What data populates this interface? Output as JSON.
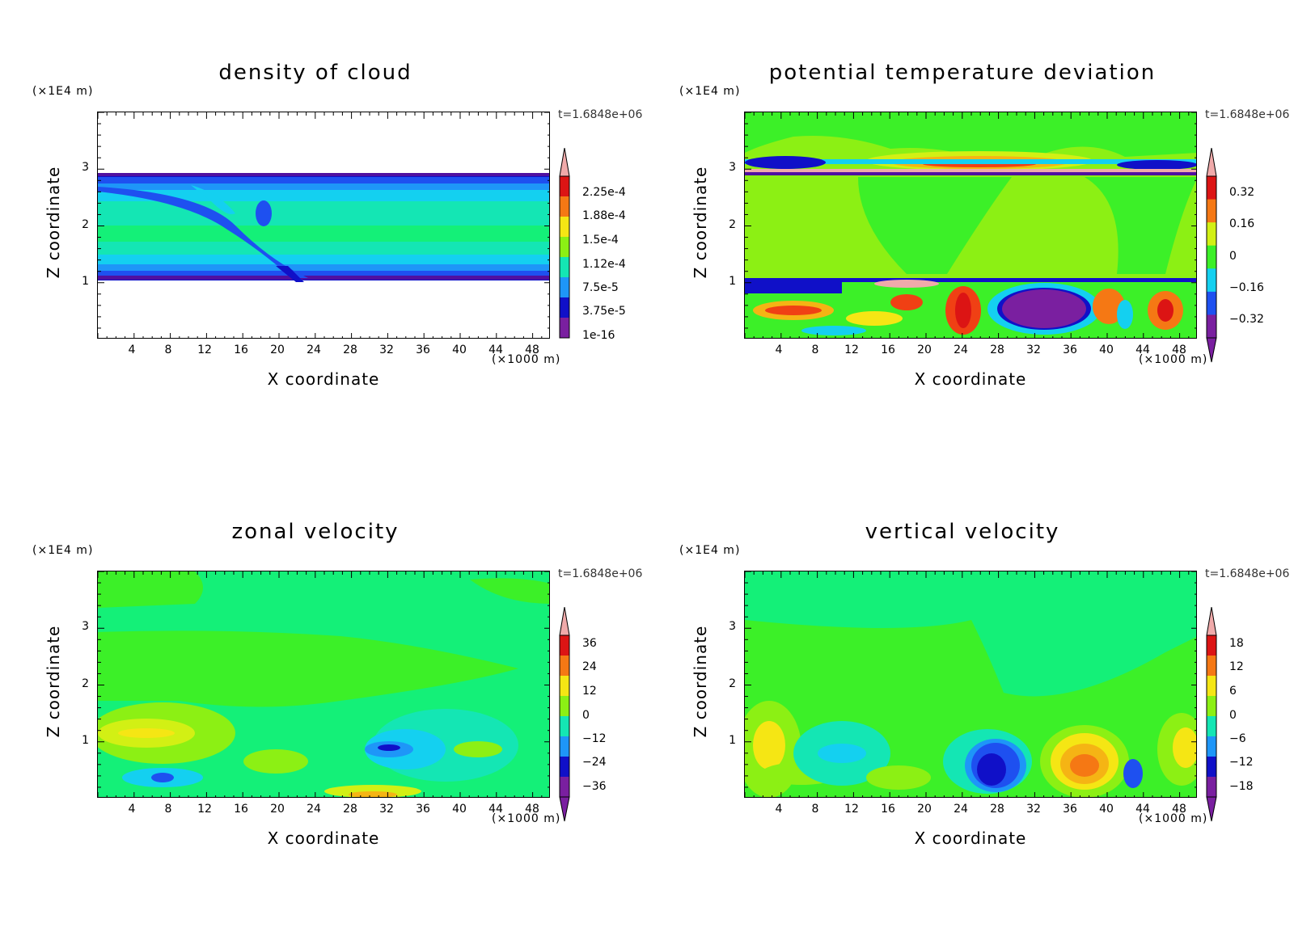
{
  "colors": {
    "scale": [
      "#7a1fa0",
      "#5010a0",
      "#1010c8",
      "#1e50f0",
      "#1e96f8",
      "#14d0f0",
      "#14e6b4",
      "#14f078",
      "#3cf028",
      "#8cf014",
      "#d2f014",
      "#f5e614",
      "#f5b414",
      "#f57814",
      "#f04014",
      "#dc1414",
      "#f0aaaa"
    ]
  },
  "panels": [
    {
      "title": "density of cloud",
      "z_unit": "(×1E4 m)",
      "time_label": "t=1.6848e+06",
      "x_axis_label": "X coordinate",
      "z_axis_label": "Z coordinate",
      "x_unit": "(×1000 m)",
      "x_ticks": [
        "4",
        "8",
        "12",
        "16",
        "20",
        "24",
        "28",
        "32",
        "36",
        "40",
        "44",
        "48"
      ],
      "z_ticks": [
        "1",
        "2",
        "3"
      ],
      "colorbar_labels": [
        "2.25e-4",
        "1.88e-4",
        "1.5e-4",
        "1.12e-4",
        "7.5e-5",
        "3.75e-5",
        "1e-16"
      ]
    },
    {
      "title": "potential temperature deviation",
      "z_unit": "(×1E4 m)",
      "time_label": "t=1.6848e+06",
      "x_axis_label": "X coordinate",
      "z_axis_label": "Z coordinate",
      "x_unit": "(×1000 m)",
      "x_ticks": [
        "4",
        "8",
        "12",
        "16",
        "20",
        "24",
        "28",
        "32",
        "36",
        "40",
        "44",
        "48"
      ],
      "z_ticks": [
        "1",
        "2",
        "3"
      ],
      "colorbar_labels": [
        "0.32",
        "0.16",
        "0",
        "−0.16",
        "−0.32"
      ]
    },
    {
      "title": "zonal velocity",
      "z_unit": "(×1E4 m)",
      "time_label": "t=1.6848e+06",
      "x_axis_label": "X coordinate",
      "z_axis_label": "Z coordinate",
      "x_unit": "(×1000 m)",
      "x_ticks": [
        "4",
        "8",
        "12",
        "16",
        "20",
        "24",
        "28",
        "32",
        "36",
        "40",
        "44",
        "48"
      ],
      "z_ticks": [
        "1",
        "2",
        "3"
      ],
      "colorbar_labels": [
        "36",
        "24",
        "12",
        "0",
        "−12",
        "−24",
        "−36"
      ]
    },
    {
      "title": "vertical velocity",
      "z_unit": "(×1E4 m)",
      "time_label": "t=1.6848e+06",
      "x_axis_label": "X coordinate",
      "z_axis_label": "Z coordinate",
      "x_unit": "(×1000 m)",
      "x_ticks": [
        "4",
        "8",
        "12",
        "16",
        "20",
        "24",
        "28",
        "32",
        "36",
        "40",
        "44",
        "48"
      ],
      "z_ticks": [
        "1",
        "2",
        "3"
      ],
      "colorbar_labels": [
        "18",
        "12",
        "6",
        "0",
        "−6",
        "−12",
        "−18"
      ]
    }
  ],
  "chart_data": [
    {
      "type": "heatmap",
      "title": "density of cloud",
      "xlabel": "X coordinate",
      "xunit": "×1000 m",
      "xlim": [
        0,
        50
      ],
      "ylabel": "Z coordinate",
      "yunit": "×1E4 m",
      "ylim": [
        0,
        4
      ],
      "colorbar_ticks": [
        0.000225,
        0.000188,
        0.00015,
        0.000112,
        7.5e-05,
        3.75e-05,
        1e-16
      ],
      "annotation": "t=1.6848e+06"
    },
    {
      "type": "heatmap",
      "title": "potential temperature deviation",
      "xlabel": "X coordinate",
      "xunit": "×1000 m",
      "xlim": [
        0,
        50
      ],
      "ylabel": "Z coordinate",
      "yunit": "×1E4 m",
      "ylim": [
        0,
        4
      ],
      "colorbar_ticks": [
        0.32,
        0.16,
        0,
        -0.16,
        -0.32
      ],
      "annotation": "t=1.6848e+06"
    },
    {
      "type": "heatmap",
      "title": "zonal velocity",
      "xlabel": "X coordinate",
      "xunit": "×1000 m",
      "xlim": [
        0,
        50
      ],
      "ylabel": "Z coordinate",
      "yunit": "×1E4 m",
      "ylim": [
        0,
        4
      ],
      "colorbar_ticks": [
        36,
        24,
        12,
        0,
        -12,
        -24,
        -36
      ],
      "annotation": "t=1.6848e+06"
    },
    {
      "type": "heatmap",
      "title": "vertical velocity",
      "xlabel": "X coordinate",
      "xunit": "×1000 m",
      "xlim": [
        0,
        50
      ],
      "ylabel": "Z coordinate",
      "yunit": "×1E4 m",
      "ylim": [
        0,
        4
      ],
      "colorbar_ticks": [
        18,
        12,
        6,
        0,
        -6,
        -12,
        -18
      ],
      "annotation": "t=1.6848e+06"
    }
  ]
}
